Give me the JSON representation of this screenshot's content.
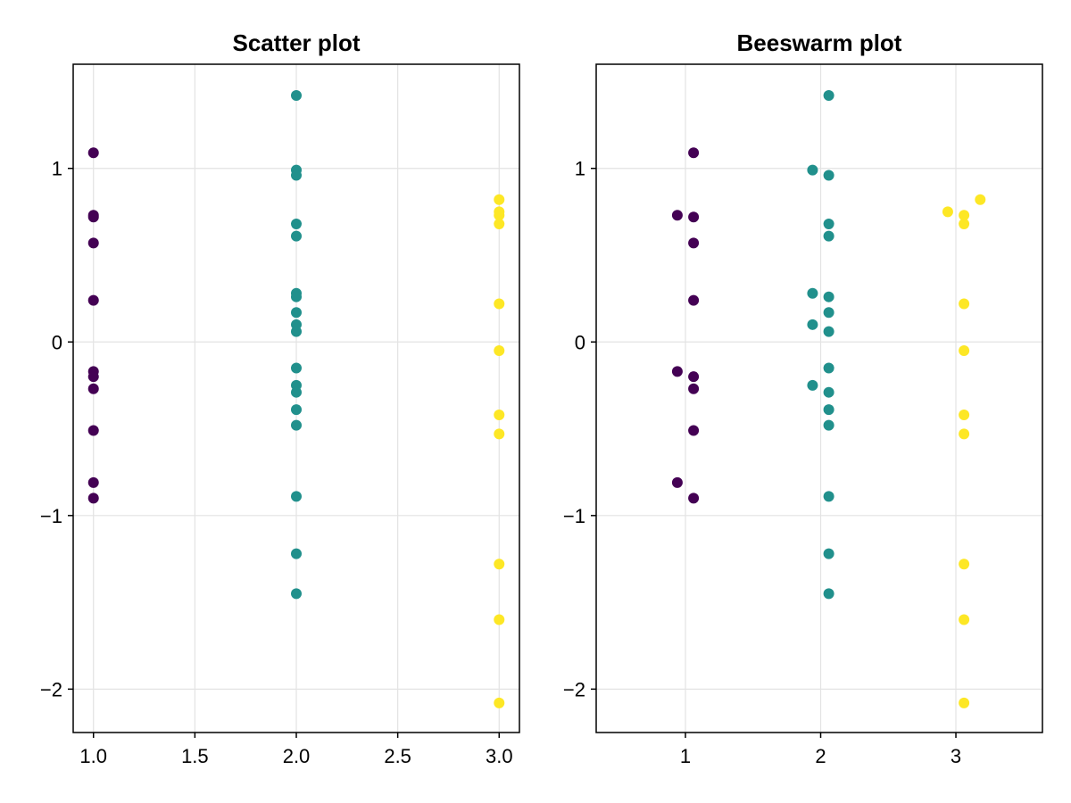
{
  "chart_data": [
    {
      "type": "scatter",
      "title": "Scatter plot",
      "xlabel": "",
      "ylabel": "",
      "xlim": [
        0.9,
        3.1
      ],
      "ylim": [
        -2.25,
        1.6
      ],
      "xticks": [
        1.0,
        1.5,
        2.0,
        2.5,
        3.0
      ],
      "xtick_labels": [
        "1.0",
        "1.5",
        "2.0",
        "2.5",
        "3.0"
      ],
      "yticks": [
        -2,
        -1,
        0,
        1
      ],
      "ytick_labels": [
        "−2",
        "−1",
        "0",
        "1"
      ],
      "grid": true,
      "series": [
        {
          "color": "#440154",
          "points": [
            [
              1,
              1.09
            ],
            [
              1,
              0.73
            ],
            [
              1,
              0.72
            ],
            [
              1,
              0.57
            ],
            [
              1,
              0.24
            ],
            [
              1,
              -0.17
            ],
            [
              1,
              -0.2
            ],
            [
              1,
              -0.27
            ],
            [
              1,
              -0.51
            ],
            [
              1,
              -0.81
            ],
            [
              1,
              -0.9
            ]
          ]
        },
        {
          "color": "#21908c",
          "points": [
            [
              2,
              1.42
            ],
            [
              2,
              0.99
            ],
            [
              2,
              0.96
            ],
            [
              2,
              0.68
            ],
            [
              2,
              0.61
            ],
            [
              2,
              0.28
            ],
            [
              2,
              0.26
            ],
            [
              2,
              0.17
            ],
            [
              2,
              0.1
            ],
            [
              2,
              0.06
            ],
            [
              2,
              -0.15
            ],
            [
              2,
              -0.25
            ],
            [
              2,
              -0.29
            ],
            [
              2,
              -0.39
            ],
            [
              2,
              -0.48
            ],
            [
              2,
              -0.89
            ],
            [
              2,
              -1.22
            ],
            [
              2,
              -1.45
            ]
          ]
        },
        {
          "color": "#fde725",
          "points": [
            [
              3,
              0.82
            ],
            [
              3,
              0.75
            ],
            [
              3,
              0.73
            ],
            [
              3,
              0.68
            ],
            [
              3,
              0.22
            ],
            [
              3,
              -0.05
            ],
            [
              3,
              -0.42
            ],
            [
              3,
              -0.53
            ],
            [
              3,
              -1.28
            ],
            [
              3,
              -1.6
            ],
            [
              3,
              -2.08
            ]
          ]
        }
      ]
    },
    {
      "type": "scatter",
      "title": "Beeswarm plot",
      "xlabel": "",
      "ylabel": "",
      "xlim": [
        0.34,
        3.64
      ],
      "ylim": [
        -2.25,
        1.6
      ],
      "xticks": [
        1,
        2,
        3
      ],
      "xtick_labels": [
        "1",
        "2",
        "3"
      ],
      "yticks": [
        -2,
        -1,
        0,
        1
      ],
      "ytick_labels": [
        "−2",
        "−1",
        "0",
        "1"
      ],
      "grid": true,
      "series": [
        {
          "color": "#440154",
          "points": [
            [
              1.06,
              1.09
            ],
            [
              0.94,
              0.73
            ],
            [
              1.06,
              0.72
            ],
            [
              1.06,
              0.57
            ],
            [
              1.06,
              0.24
            ],
            [
              0.94,
              -0.17
            ],
            [
              1.06,
              -0.2
            ],
            [
              1.06,
              -0.27
            ],
            [
              1.06,
              -0.51
            ],
            [
              0.94,
              -0.81
            ],
            [
              1.06,
              -0.9
            ]
          ]
        },
        {
          "color": "#21908c",
          "points": [
            [
              2.06,
              1.42
            ],
            [
              1.94,
              0.99
            ],
            [
              2.06,
              0.96
            ],
            [
              2.06,
              0.68
            ],
            [
              2.06,
              0.61
            ],
            [
              1.94,
              0.28
            ],
            [
              2.06,
              0.26
            ],
            [
              2.06,
              0.17
            ],
            [
              1.94,
              0.1
            ],
            [
              2.06,
              0.06
            ],
            [
              2.06,
              -0.15
            ],
            [
              1.94,
              -0.25
            ],
            [
              2.06,
              -0.29
            ],
            [
              2.06,
              -0.39
            ],
            [
              2.06,
              -0.48
            ],
            [
              2.06,
              -0.89
            ],
            [
              2.06,
              -1.22
            ],
            [
              2.06,
              -1.45
            ]
          ]
        },
        {
          "color": "#fde725",
          "points": [
            [
              3.18,
              0.82
            ],
            [
              2.94,
              0.75
            ],
            [
              3.06,
              0.73
            ],
            [
              3.06,
              0.68
            ],
            [
              3.06,
              0.22
            ],
            [
              3.06,
              -0.05
            ],
            [
              3.06,
              -0.42
            ],
            [
              3.06,
              -0.53
            ],
            [
              3.06,
              -1.28
            ],
            [
              3.06,
              -1.6
            ],
            [
              3.06,
              -2.08
            ]
          ]
        }
      ]
    }
  ]
}
